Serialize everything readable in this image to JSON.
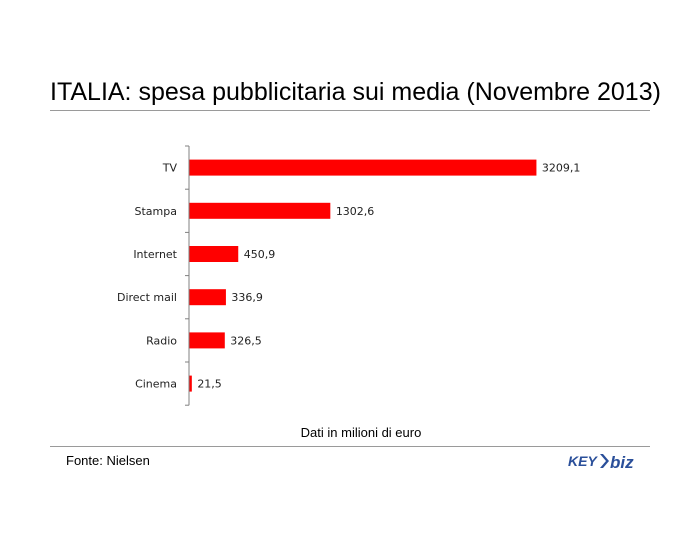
{
  "chart_data": {
    "type": "bar",
    "orientation": "horizontal",
    "title": "ITALIA: spesa pubblicitaria sui media (Novembre 2013)",
    "xlabel": "Dati in milioni di euro",
    "ylabel": "",
    "categories": [
      "TV",
      "Stampa",
      "Internet",
      "Direct mail",
      "Radio",
      "Cinema"
    ],
    "values": [
      3209.1,
      1302.6,
      450.9,
      336.9,
      326.5,
      21.5
    ],
    "value_labels": [
      "3209,1",
      "1302,6",
      "450,9",
      "336,9",
      "326,5",
      "21,5"
    ],
    "xlim": [
      0,
      3700
    ],
    "bar_color": "#ff0000",
    "grid": false,
    "legend": "none"
  },
  "source": "Fonte: Nielsen",
  "logo": {
    "text_left": "KEY",
    "text_right": "biz",
    "color": "#2a4f9a"
  }
}
